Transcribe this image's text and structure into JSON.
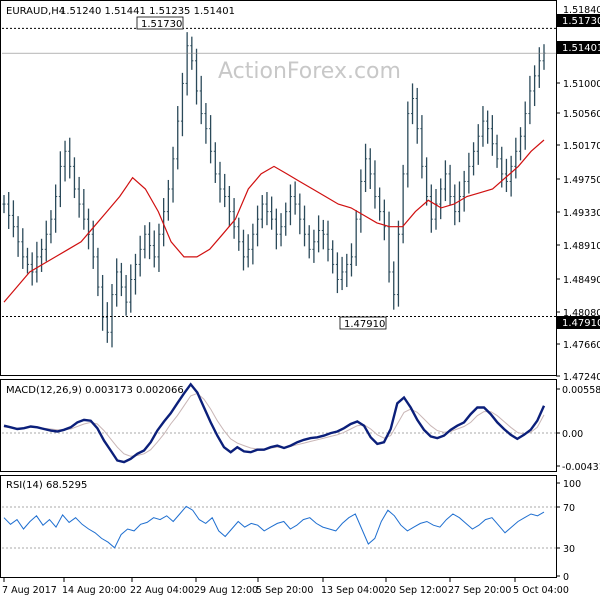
{
  "header": {
    "symbol": "EURAUD,H4",
    "ohlc": "1.51240 1.51441 1.51235 1.51401"
  },
  "watermark": "ActionForex.com",
  "colors": {
    "bars": "#2b4a5a",
    "ma": "#d01010",
    "macd": "#0b1f7a",
    "signal": "#c9b6b6",
    "rsi": "#1f6fd0",
    "dashed": "#000000",
    "grid_text": "#000000",
    "watermark": "#c8c8c8"
  },
  "chart_data": [
    {
      "type": "line",
      "panel": "price",
      "title": "EURAUD,H4",
      "ylim": [
        1.472,
        1.52
      ],
      "y_ticks": [
        "1.51840",
        "1.51400",
        "1.51000",
        "1.50560",
        "1.50170",
        "1.49750",
        "1.49330",
        "1.48910",
        "1.48490",
        "1.48080",
        "1.47660",
        "1.47240"
      ],
      "x_ticks": [
        "7 Aug 2017",
        "14 Aug 20:00",
        "22 Aug 04:00",
        "29 Aug 12:00",
        "5 Sep 20:00",
        "13 Sep 04:00",
        "20 Sep 12:00",
        "27 Sep 20:00",
        "5 Oct 04:00"
      ],
      "reference_lines": [
        {
          "label": "1.51730",
          "value": 1.5173
        },
        {
          "label": "1.47910",
          "value": 1.4791
        }
      ],
      "current_price": {
        "label": "1.51401",
        "value": 1.51401
      },
      "series": [
        {
          "values": [
            1.494,
            1.4925,
            1.491,
            1.489,
            1.487,
            1.486,
            1.485,
            1.487,
            1.488,
            1.49,
            1.492,
            1.495,
            1.499,
            1.501,
            1.499,
            1.496,
            1.494,
            1.492,
            1.49,
            1.487,
            1.483,
            1.479,
            1.477,
            1.482,
            1.485,
            1.483,
            1.481,
            1.484,
            1.486,
            1.488,
            1.49,
            1.4885,
            1.487,
            1.49,
            1.493,
            1.496,
            1.5,
            1.505,
            1.51,
            1.515,
            1.513,
            1.509,
            1.506,
            1.504,
            1.501,
            1.498,
            1.496,
            1.495,
            1.493,
            1.491,
            1.489,
            1.487,
            1.488,
            1.49,
            1.492,
            1.494,
            1.493,
            1.492,
            1.49,
            1.491,
            1.493,
            1.495,
            1.494,
            1.492,
            1.49,
            1.488,
            1.489,
            1.4905,
            1.49,
            1.488,
            1.486,
            1.484,
            1.485,
            1.486,
            1.487,
            1.492,
            1.497,
            1.5,
            1.498,
            1.495,
            1.493,
            1.491,
            1.485,
            1.482,
            1.49,
            1.498,
            1.506,
            1.508,
            1.504,
            1.499,
            1.495,
            1.492,
            1.494,
            1.496,
            1.498,
            1.495,
            1.493,
            1.495,
            1.497,
            1.499,
            1.501,
            1.503,
            1.505,
            1.504,
            1.502,
            1.5,
            1.498,
            1.497,
            1.499,
            1.501,
            1.503,
            1.506,
            1.509,
            1.511,
            1.513,
            1.514
          ]
        },
        {
          "values": [
            1.481,
            1.483,
            1.485,
            1.486,
            1.487,
            1.488,
            1.489,
            1.491,
            1.493,
            1.495,
            1.4975,
            1.496,
            1.493,
            1.489,
            1.487,
            1.487,
            1.488,
            1.49,
            1.492,
            1.496,
            1.498,
            1.499,
            1.498,
            1.497,
            1.496,
            1.495,
            1.494,
            1.4935,
            1.4925,
            1.4915,
            1.491,
            1.491,
            1.493,
            1.4945,
            1.4935,
            1.494,
            1.495,
            1.4955,
            1.496,
            1.4975,
            1.499,
            1.501,
            1.5025
          ]
        }
      ],
      "ma_period": 20
    },
    {
      "type": "line",
      "panel": "macd",
      "title": "MACD(12,26,9) 0.003173 0.002066",
      "ylim": [
        -0.00431,
        0.00559
      ],
      "y_ticks": [
        "0.005586",
        "0.00",
        "-0.004312"
      ],
      "series": [
        {
          "values": [
            0.0008,
            0.0006,
            0.0004,
            0.0005,
            0.0007,
            0.0006,
            0.0004,
            0.0002,
            0.0001,
            0.0003,
            0.0006,
            0.0012,
            0.0015,
            0.0014,
            0.0005,
            -0.001,
            -0.0022,
            -0.0034,
            -0.0036,
            -0.0032,
            -0.0026,
            -0.0022,
            -0.0012,
            0.0002,
            0.0013,
            0.0023,
            0.0035,
            0.0047,
            0.0058,
            0.0048,
            0.003,
            0.0012,
            -0.0004,
            -0.0018,
            -0.0024,
            -0.0018,
            -0.0023,
            -0.0024,
            -0.0021,
            -0.0021,
            -0.0018,
            -0.0016,
            -0.0019,
            -0.0016,
            -0.0012,
            -0.0009,
            -0.0007,
            -0.0006,
            -0.0004,
            -0.0001,
            0.0001,
            0.0005,
            0.001,
            0.0013,
            0.0008,
            -0.0006,
            -0.0014,
            -0.0012,
            0.0004,
            0.0035,
            0.0042,
            0.003,
            0.0015,
            0.0003,
            -0.0005,
            -0.0007,
            -0.0004,
            0.0003,
            0.0008,
            0.0012,
            0.0022,
            0.003,
            0.003,
            0.0022,
            0.0012,
            0.0004,
            -0.0003,
            -0.0008,
            -0.0003,
            0.0003,
            0.0014,
            0.0032
          ]
        },
        {
          "values": [
            0.0006,
            0.0006,
            0.0005,
            0.0005,
            0.0006,
            0.0006,
            0.0005,
            0.0004,
            0.0003,
            0.0003,
            0.0004,
            0.0007,
            0.001,
            0.0012,
            0.001,
            0.0002,
            -0.0008,
            -0.0018,
            -0.0026,
            -0.0029,
            -0.0028,
            -0.0026,
            -0.0021,
            -0.0012,
            -0.0002,
            0.001,
            0.002,
            0.0032,
            0.0044,
            0.0047,
            0.004,
            0.0028,
            0.0014,
            0.0002,
            -0.0008,
            -0.0013,
            -0.0016,
            -0.0019,
            -0.002,
            -0.002,
            -0.0019,
            -0.0018,
            -0.0018,
            -0.0017,
            -0.0015,
            -0.0013,
            -0.0011,
            -0.0009,
            -0.0007,
            -0.0005,
            -0.0003,
            0.0,
            0.0004,
            0.0008,
            0.0009,
            0.0004,
            -0.0003,
            -0.0007,
            -0.0004,
            0.001,
            0.0024,
            0.0028,
            0.0024,
            0.0016,
            0.0008,
            0.0002,
            0.0,
            0.0001,
            0.0004,
            0.0007,
            0.0012,
            0.002,
            0.0025,
            0.0025,
            0.002,
            0.0013,
            0.0006,
            0.0,
            -0.0002,
            0.0,
            0.0006,
            0.0021
          ]
        }
      ]
    },
    {
      "type": "line",
      "panel": "rsi",
      "title": "RSI(14) 68.5295",
      "ylim": [
        0,
        100
      ],
      "y_ticks": [
        "100",
        "70",
        "30",
        "0"
      ],
      "levels": [
        70,
        30
      ],
      "series": [
        {
          "values": [
            62,
            55,
            60,
            50,
            58,
            64,
            54,
            60,
            52,
            65,
            57,
            62,
            55,
            50,
            46,
            40,
            36,
            30,
            44,
            50,
            48,
            55,
            57,
            62,
            60,
            64,
            58,
            66,
            74,
            70,
            60,
            56,
            62,
            48,
            42,
            50,
            58,
            52,
            56,
            54,
            48,
            52,
            56,
            58,
            50,
            54,
            60,
            62,
            56,
            52,
            50,
            48,
            56,
            62,
            66,
            50,
            34,
            40,
            58,
            70,
            64,
            54,
            48,
            52,
            56,
            58,
            54,
            52,
            60,
            66,
            62,
            56,
            50,
            54,
            60,
            62,
            54,
            46,
            52,
            58,
            62,
            66,
            64,
            68
          ]
        }
      ]
    }
  ]
}
